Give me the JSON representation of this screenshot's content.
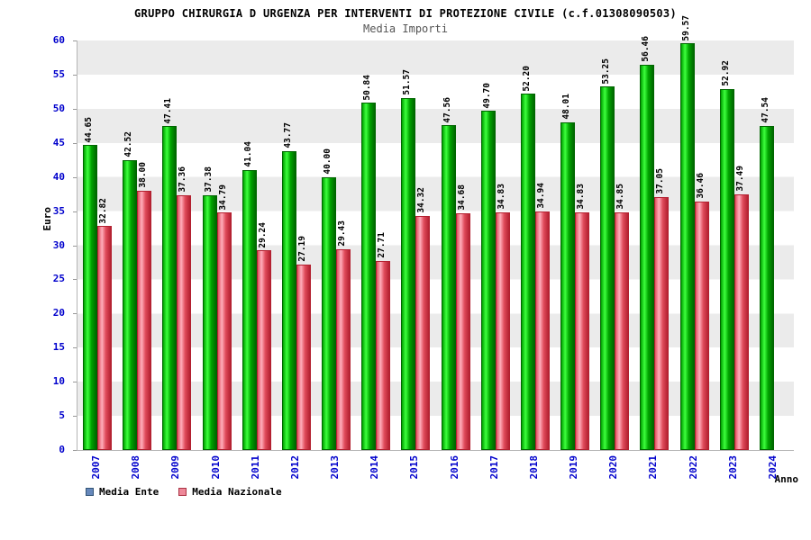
{
  "title": "GRUPPO CHIRURGIA D URGENZA PER INTERVENTI DI PROTEZIONE CIVILE (c.f.01308090503)",
  "subtitle": "Media Importi",
  "axes": {
    "y_label": "Euro",
    "x_label": "Anno",
    "y_ticks": [
      0,
      5,
      10,
      15,
      20,
      25,
      30,
      35,
      40,
      45,
      50,
      55,
      60
    ]
  },
  "legend": [
    {
      "label": "Media Ente",
      "swatch_color": "#6688bb",
      "swatch_border": "#335577"
    },
    {
      "label": "Media Nazionale",
      "swatch_color": "#ee8899",
      "swatch_border": "#aa3344"
    }
  ],
  "colors": {
    "tick_label": "#0000cc",
    "series_ente": "#00cc00",
    "series_nazionale": "#ee5566",
    "band_gray": "#ebebeb"
  },
  "chart_data": {
    "type": "bar",
    "title": "GRUPPO CHIRURGIA D URGENZA PER INTERVENTI DI PROTEZIONE CIVILE (c.f.01308090503)",
    "subtitle": "Media Importi",
    "xlabel": "Anno",
    "ylabel": "Euro",
    "ylim": [
      0,
      60
    ],
    "y_tick_step": 5,
    "grid": "alternating-horizontal-bands",
    "legend_position": "bottom-left",
    "value_labels": true,
    "categories": [
      "2007",
      "2008",
      "2009",
      "2010",
      "2011",
      "2012",
      "2013",
      "2014",
      "2015",
      "2016",
      "2017",
      "2018",
      "2019",
      "2020",
      "2021",
      "2022",
      "2023",
      "2024"
    ],
    "series": [
      {
        "name": "Media Ente",
        "color": "#00cc00",
        "values": [
          44.65,
          42.52,
          47.41,
          37.38,
          41.04,
          43.77,
          40.0,
          50.84,
          51.57,
          47.56,
          49.7,
          52.2,
          48.01,
          53.25,
          56.46,
          59.57,
          52.92,
          47.54
        ]
      },
      {
        "name": "Media Nazionale",
        "color": "#ee5566",
        "values": [
          32.82,
          38.0,
          37.36,
          34.79,
          29.24,
          27.19,
          29.43,
          27.71,
          34.32,
          34.68,
          34.83,
          34.94,
          34.83,
          34.85,
          37.05,
          36.46,
          37.49,
          null
        ]
      }
    ]
  }
}
